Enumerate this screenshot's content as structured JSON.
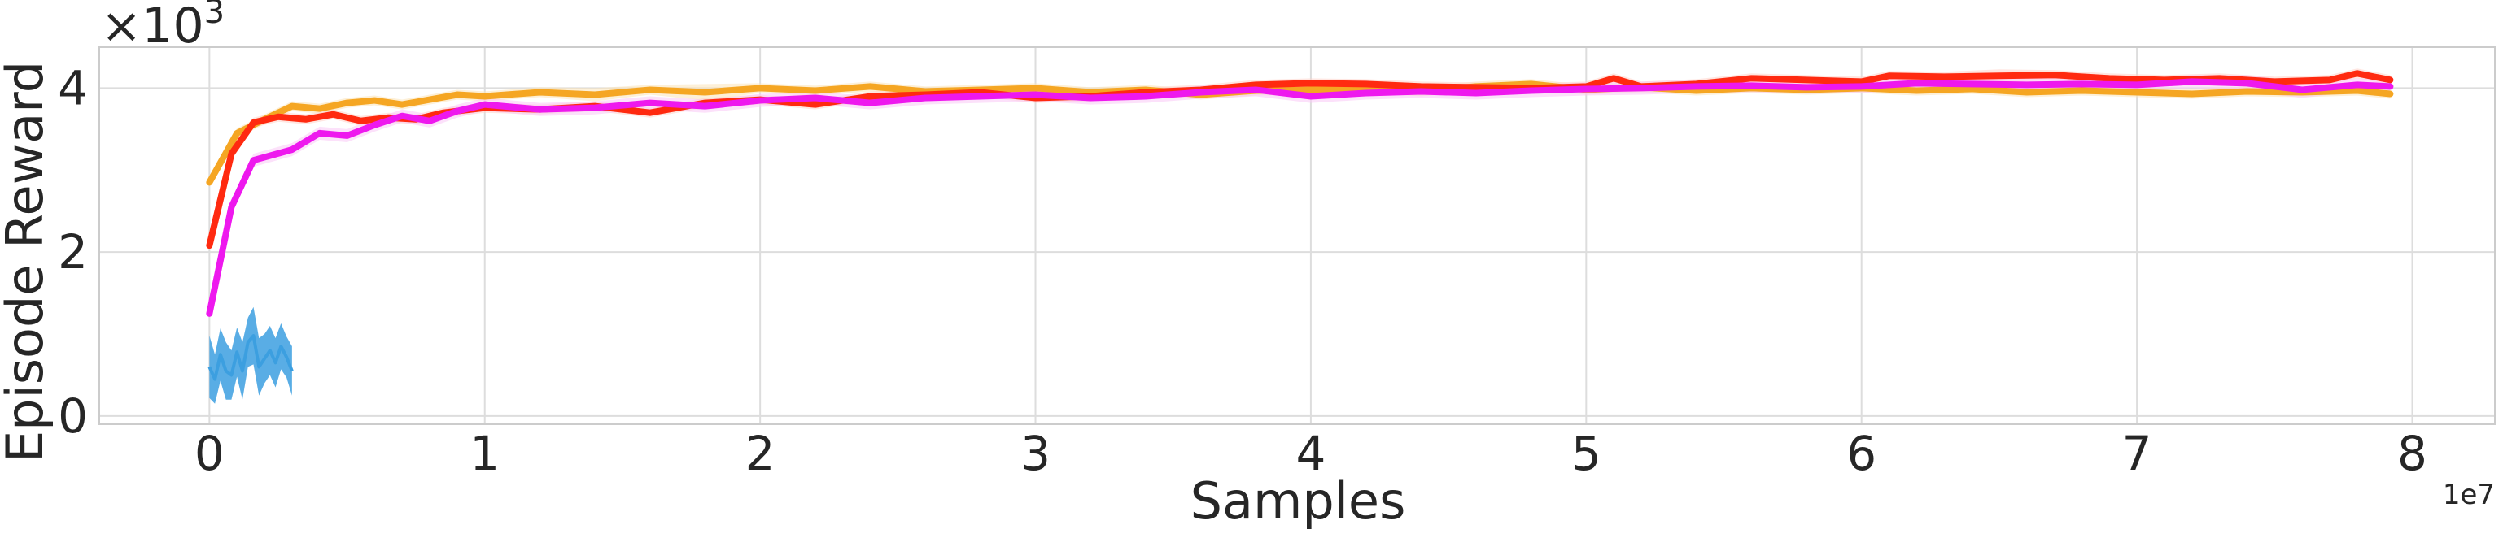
{
  "chart_data": {
    "type": "line",
    "title": "",
    "xlabel": "Samples",
    "ylabel": "Episode Reward",
    "x_offset_label": "1e7",
    "y_scale_label": {
      "base": "×10",
      "exponent": "3"
    },
    "xlim": [
      -0.4,
      8.3
    ],
    "ylim": [
      -0.1,
      4.5
    ],
    "x_ticks": [
      0,
      1,
      2,
      3,
      4,
      5,
      6,
      7,
      8
    ],
    "x_tick_labels": [
      "0",
      "1",
      "2",
      "3",
      "4",
      "5",
      "6",
      "7",
      "8"
    ],
    "y_ticks": [
      0,
      2,
      4
    ],
    "y_tick_labels": [
      "0",
      "2",
      "4"
    ],
    "grid": true,
    "legend": "none",
    "series": [
      {
        "color": "#f5a623",
        "band_color": "#fbe3b8",
        "x": [
          0,
          0.1,
          0.2,
          0.3,
          0.4,
          0.5,
          0.6,
          0.7,
          0.8,
          0.9,
          1.0,
          1.2,
          1.4,
          1.6,
          1.8,
          2.0,
          2.2,
          2.4,
          2.6,
          2.8,
          3.0,
          3.2,
          3.4,
          3.6,
          3.8,
          4.0,
          4.2,
          4.4,
          4.6,
          4.8,
          5.0,
          5.2,
          5.4,
          5.6,
          5.8,
          6.0,
          6.2,
          6.4,
          6.6,
          6.8,
          7.0,
          7.2,
          7.4,
          7.6,
          7.8,
          7.92
        ],
        "y": [
          2.85,
          3.45,
          3.62,
          3.78,
          3.75,
          3.82,
          3.85,
          3.8,
          3.86,
          3.92,
          3.9,
          3.95,
          3.92,
          3.98,
          3.95,
          4.0,
          3.97,
          4.02,
          3.96,
          3.98,
          4.0,
          3.95,
          3.98,
          3.92,
          3.97,
          3.98,
          4.0,
          3.96,
          4.02,
          4.05,
          3.98,
          4.01,
          3.97,
          4.0,
          3.98,
          4.0,
          3.97,
          3.99,
          3.95,
          3.97,
          3.95,
          3.93,
          3.96,
          3.95,
          3.97,
          3.93
        ],
        "band": [
          0.06,
          0.06,
          0.06,
          0.06,
          0.06,
          0.06,
          0.06,
          0.06,
          0.06,
          0.06,
          0.06,
          0.06,
          0.08,
          0.06,
          0.1,
          0.06,
          0.06,
          0.06,
          0.06,
          0.06,
          0.06,
          0.06,
          0.06,
          0.06,
          0.06,
          0.06,
          0.06,
          0.06,
          0.06,
          0.06,
          0.06,
          0.06,
          0.06,
          0.06,
          0.06,
          0.06,
          0.06,
          0.06,
          0.06,
          0.06,
          0.06,
          0.06,
          0.06,
          0.06,
          0.06,
          0.06
        ]
      },
      {
        "color": "#ff2a10",
        "band_color": "#ffd2c8",
        "x": [
          0,
          0.08,
          0.16,
          0.25,
          0.35,
          0.45,
          0.55,
          0.65,
          0.75,
          0.85,
          1.0,
          1.2,
          1.4,
          1.6,
          1.8,
          2.0,
          2.2,
          2.4,
          2.6,
          2.8,
          3.0,
          3.2,
          3.4,
          3.6,
          3.8,
          4.0,
          4.2,
          4.4,
          4.6,
          4.8,
          5.0,
          5.1,
          5.2,
          5.4,
          5.6,
          5.8,
          6.0,
          6.1,
          6.3,
          6.5,
          6.7,
          6.9,
          7.1,
          7.3,
          7.5,
          7.7,
          7.8,
          7.92
        ],
        "y": [
          2.08,
          3.2,
          3.58,
          3.65,
          3.62,
          3.68,
          3.6,
          3.64,
          3.62,
          3.7,
          3.76,
          3.74,
          3.78,
          3.7,
          3.82,
          3.86,
          3.8,
          3.9,
          3.92,
          3.95,
          3.88,
          3.9,
          3.95,
          3.98,
          4.04,
          4.06,
          4.05,
          4.02,
          4.01,
          4.0,
          4.02,
          4.12,
          4.02,
          4.05,
          4.12,
          4.1,
          4.08,
          4.15,
          4.14,
          4.15,
          4.16,
          4.12,
          4.1,
          4.12,
          4.08,
          4.1,
          4.18,
          4.1
        ],
        "band": [
          0.06,
          0.08,
          0.06,
          0.06,
          0.06,
          0.06,
          0.06,
          0.06,
          0.06,
          0.06,
          0.06,
          0.06,
          0.06,
          0.06,
          0.06,
          0.06,
          0.06,
          0.06,
          0.06,
          0.06,
          0.06,
          0.06,
          0.06,
          0.06,
          0.06,
          0.06,
          0.06,
          0.06,
          0.06,
          0.06,
          0.06,
          0.06,
          0.06,
          0.06,
          0.06,
          0.06,
          0.06,
          0.06,
          0.06,
          0.08,
          0.06,
          0.06,
          0.06,
          0.06,
          0.06,
          0.06,
          0.06,
          0.06
        ]
      },
      {
        "color": "#ee18ee",
        "band_color": "#f9c8f6",
        "x": [
          0,
          0.08,
          0.16,
          0.3,
          0.4,
          0.5,
          0.6,
          0.7,
          0.8,
          0.9,
          1.0,
          1.2,
          1.4,
          1.6,
          1.8,
          2.0,
          2.2,
          2.4,
          2.6,
          2.8,
          3.0,
          3.2,
          3.4,
          3.6,
          3.8,
          4.0,
          4.2,
          4.4,
          4.6,
          4.8,
          5.0,
          5.2,
          5.4,
          5.6,
          5.8,
          6.0,
          6.2,
          6.4,
          6.6,
          6.8,
          7.0,
          7.2,
          7.4,
          7.6,
          7.8,
          7.92
        ],
        "y": [
          1.25,
          2.55,
          3.12,
          3.25,
          3.45,
          3.42,
          3.55,
          3.66,
          3.6,
          3.72,
          3.8,
          3.74,
          3.76,
          3.82,
          3.78,
          3.85,
          3.88,
          3.82,
          3.88,
          3.9,
          3.92,
          3.88,
          3.9,
          3.95,
          3.98,
          3.9,
          3.94,
          3.96,
          3.94,
          3.97,
          3.99,
          4.0,
          4.02,
          4.03,
          4.01,
          4.02,
          4.06,
          4.05,
          4.04,
          4.05,
          4.04,
          4.08,
          4.06,
          3.98,
          4.04,
          4.02
        ],
        "band": [
          0.06,
          0.08,
          0.08,
          0.08,
          0.08,
          0.08,
          0.08,
          0.08,
          0.08,
          0.08,
          0.08,
          0.08,
          0.08,
          0.08,
          0.08,
          0.08,
          0.08,
          0.08,
          0.08,
          0.08,
          0.08,
          0.08,
          0.08,
          0.08,
          0.08,
          0.08,
          0.08,
          0.08,
          0.08,
          0.08,
          0.08,
          0.08,
          0.08,
          0.08,
          0.08,
          0.08,
          0.08,
          0.08,
          0.1,
          0.08,
          0.08,
          0.08,
          0.1,
          0.1,
          0.08,
          0.08
        ]
      },
      {
        "color": "#3c9fe0",
        "band_color": "#3c9fe0",
        "x": [
          0,
          0.02,
          0.04,
          0.06,
          0.08,
          0.1,
          0.12,
          0.14,
          0.16,
          0.18,
          0.2,
          0.22,
          0.24,
          0.26,
          0.28,
          0.3
        ],
        "y": [
          0.6,
          0.45,
          0.75,
          0.55,
          0.5,
          0.78,
          0.55,
          0.9,
          0.98,
          0.6,
          0.7,
          0.8,
          0.65,
          0.85,
          0.72,
          0.55
        ],
        "band": [
          0.38,
          0.3,
          0.32,
          0.35,
          0.3,
          0.3,
          0.35,
          0.3,
          0.35,
          0.35,
          0.3,
          0.3,
          0.3,
          0.28,
          0.25,
          0.3
        ]
      }
    ]
  }
}
